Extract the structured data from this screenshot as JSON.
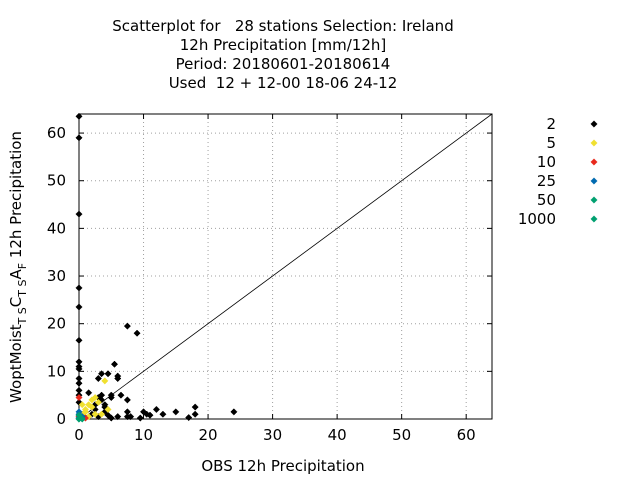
{
  "chart_data": {
    "type": "scatter",
    "title_lines": [
      "Scatterplot for   28 stations Selection: Ireland",
      "12h Precipitation [mm/12h]",
      "Period: 20180601-20180614",
      "Used  12 + 12-00 18-06 24-12"
    ],
    "xlabel": "OBS 12h Precipitation",
    "ylabel": "WoptMoist_TS C_TS A_F 12h Precipitation",
    "ylabel_parts": {
      "a": "WoptMoist",
      "a_sub": "T S",
      "b": "C",
      "b_sub": "T S",
      "c": "A",
      "c_sub": "F",
      "d": " 12h Precipitation"
    },
    "xlim": [
      0,
      64
    ],
    "ylim": [
      0,
      64
    ],
    "xticks": [
      0,
      10,
      20,
      30,
      40,
      50,
      60
    ],
    "yticks": [
      0,
      10,
      20,
      30,
      40,
      50,
      60
    ],
    "grid": true,
    "diagonal": true,
    "legend_position": "right",
    "series": [
      {
        "name": "2",
        "color": "#000000",
        "points": [
          [
            0,
            63.5
          ],
          [
            0,
            59
          ],
          [
            0,
            43
          ],
          [
            0,
            27.5
          ],
          [
            0,
            23.5
          ],
          [
            0,
            16.5
          ],
          [
            0,
            12
          ],
          [
            0,
            11
          ],
          [
            0,
            10.5
          ],
          [
            0,
            8.5
          ],
          [
            0,
            7.5
          ],
          [
            0,
            6
          ],
          [
            0,
            5
          ],
          [
            0,
            3.5
          ],
          [
            1.5,
            5.5
          ],
          [
            2.5,
            3
          ],
          [
            3,
            4.5
          ],
          [
            3,
            8.5
          ],
          [
            3.5,
            9.5
          ],
          [
            3.5,
            5
          ],
          [
            3.5,
            4
          ],
          [
            4,
            3
          ],
          [
            4,
            2.5
          ],
          [
            4.5,
            9.5
          ],
          [
            5,
            5
          ],
          [
            5,
            4.5
          ],
          [
            5.5,
            11.5
          ],
          [
            6,
            9
          ],
          [
            6,
            8.5
          ],
          [
            6.5,
            5
          ],
          [
            7.5,
            19.5
          ],
          [
            7.5,
            4
          ],
          [
            7.5,
            1.5
          ],
          [
            7.5,
            0.5
          ],
          [
            9,
            18
          ],
          [
            10,
            1.5
          ],
          [
            10.5,
            1
          ],
          [
            11,
            0.8
          ],
          [
            12,
            2
          ],
          [
            13,
            1
          ],
          [
            15,
            1.5
          ],
          [
            17,
            0.3
          ],
          [
            18,
            2.5
          ],
          [
            18,
            1
          ],
          [
            24,
            1.5
          ],
          [
            2,
            1
          ],
          [
            3,
            0.5
          ],
          [
            4,
            1.5
          ],
          [
            5,
            0.2
          ],
          [
            6,
            0.5
          ],
          [
            1,
            0.3
          ],
          [
            2.5,
            2
          ],
          [
            8,
            0.5
          ],
          [
            9.5,
            0.2
          ],
          [
            4.5,
            0.8
          ]
        ]
      },
      {
        "name": "5",
        "color": "#f0e030",
        "points": [
          [
            0.5,
            1
          ],
          [
            1,
            2
          ],
          [
            1.5,
            3
          ],
          [
            2,
            4
          ],
          [
            2.5,
            4.5
          ],
          [
            3,
            3.5
          ],
          [
            2,
            2.5
          ],
          [
            1,
            1.5
          ],
          [
            3.5,
            1
          ],
          [
            4,
            8
          ],
          [
            4.5,
            2
          ],
          [
            1.5,
            0.5
          ],
          [
            2.5,
            1
          ],
          [
            0.5,
            3
          ]
        ]
      },
      {
        "name": "10",
        "color": "#e8281c",
        "points": [
          [
            0,
            4.5
          ],
          [
            0,
            0.5
          ],
          [
            0.5,
            0.2
          ],
          [
            1,
            0.2
          ]
        ]
      },
      {
        "name": "25",
        "color": "#006ab0",
        "points": [
          [
            0,
            1.5
          ],
          [
            0,
            1
          ],
          [
            0.5,
            0.5
          ],
          [
            0,
            0.2
          ]
        ]
      },
      {
        "name": "50",
        "color": "#00a070",
        "points": [
          [
            0,
            0.8
          ],
          [
            0.5,
            0
          ],
          [
            0,
            0
          ]
        ]
      },
      {
        "name": "1000",
        "color": "#00a070",
        "points": [
          [
            0,
            0
          ]
        ]
      }
    ]
  }
}
